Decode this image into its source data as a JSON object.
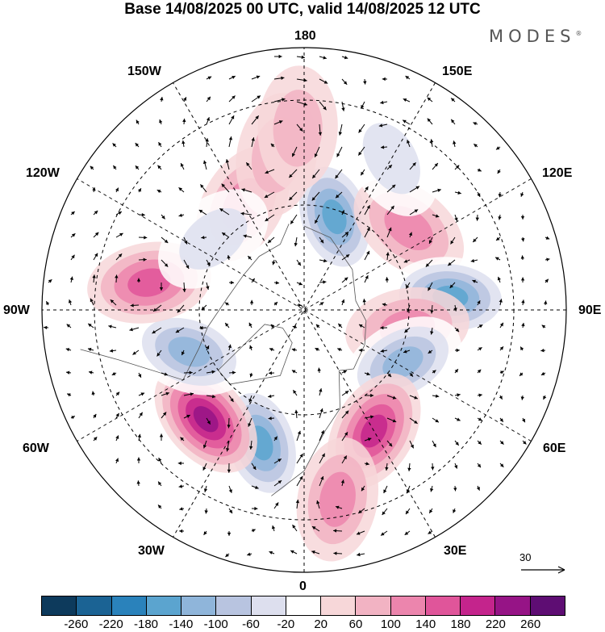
{
  "title": "Base 14/08/2025 00 UTC, valid 14/08/2025 12 UTC",
  "brand": "MODES",
  "brand_mark": "®",
  "longitude_labels": {
    "top": "180",
    "top_left": "150W",
    "top_right": "150E",
    "upper_left": "120W",
    "upper_right": "120E",
    "left": "90W",
    "right": "90E",
    "lower_left": "60W",
    "lower_right": "60E",
    "bottom_left": "30W",
    "bottom_right": "30E",
    "bottom": "0"
  },
  "reference_vector": "30",
  "colorbar": {
    "colors": [
      "#0d3a5c",
      "#1b6394",
      "#2a82bb",
      "#5ba4cf",
      "#8fb5da",
      "#b8c4e0",
      "#dddfee",
      "#ffffff",
      "#f7d7d9",
      "#f2b3c3",
      "#ec85ad",
      "#e0559a",
      "#c4248c",
      "#961486",
      "#5e0d73"
    ],
    "tick_labels": [
      "-260",
      "-220",
      "-180",
      "-140",
      "-100",
      "-60",
      "-20",
      "20",
      "60",
      "100",
      "140",
      "180",
      "220",
      "260"
    ]
  },
  "anomalies": [
    {
      "lon": 162,
      "lat": 62,
      "value": -200
    },
    {
      "lon": 128,
      "lat": 52,
      "value": 120
    },
    {
      "lon": 95,
      "lat": 48,
      "value": -180
    },
    {
      "lon": 80,
      "lat": 60,
      "value": 110
    },
    {
      "lon": 62,
      "lat": 58,
      "value": -160
    },
    {
      "lon": 30,
      "lat": 50,
      "value": 180
    },
    {
      "lon": -18,
      "lat": 50,
      "value": -200
    },
    {
      "lon": -42,
      "lat": 48,
      "value": 220
    },
    {
      "lon": -70,
      "lat": 55,
      "value": -160
    },
    {
      "lon": -100,
      "lat": 45,
      "value": 140
    },
    {
      "lon": -150,
      "lat": 55,
      "value": 120
    },
    {
      "lon": -170,
      "lat": 45,
      "value": 80
    },
    {
      "lon": -128,
      "lat": 57,
      "value": -80
    },
    {
      "lon": 150,
      "lat": 40,
      "value": -60
    },
    {
      "lon": 10,
      "lat": 35,
      "value": 110
    },
    {
      "lon": -178,
      "lat": 38,
      "value": 60
    }
  ]
}
